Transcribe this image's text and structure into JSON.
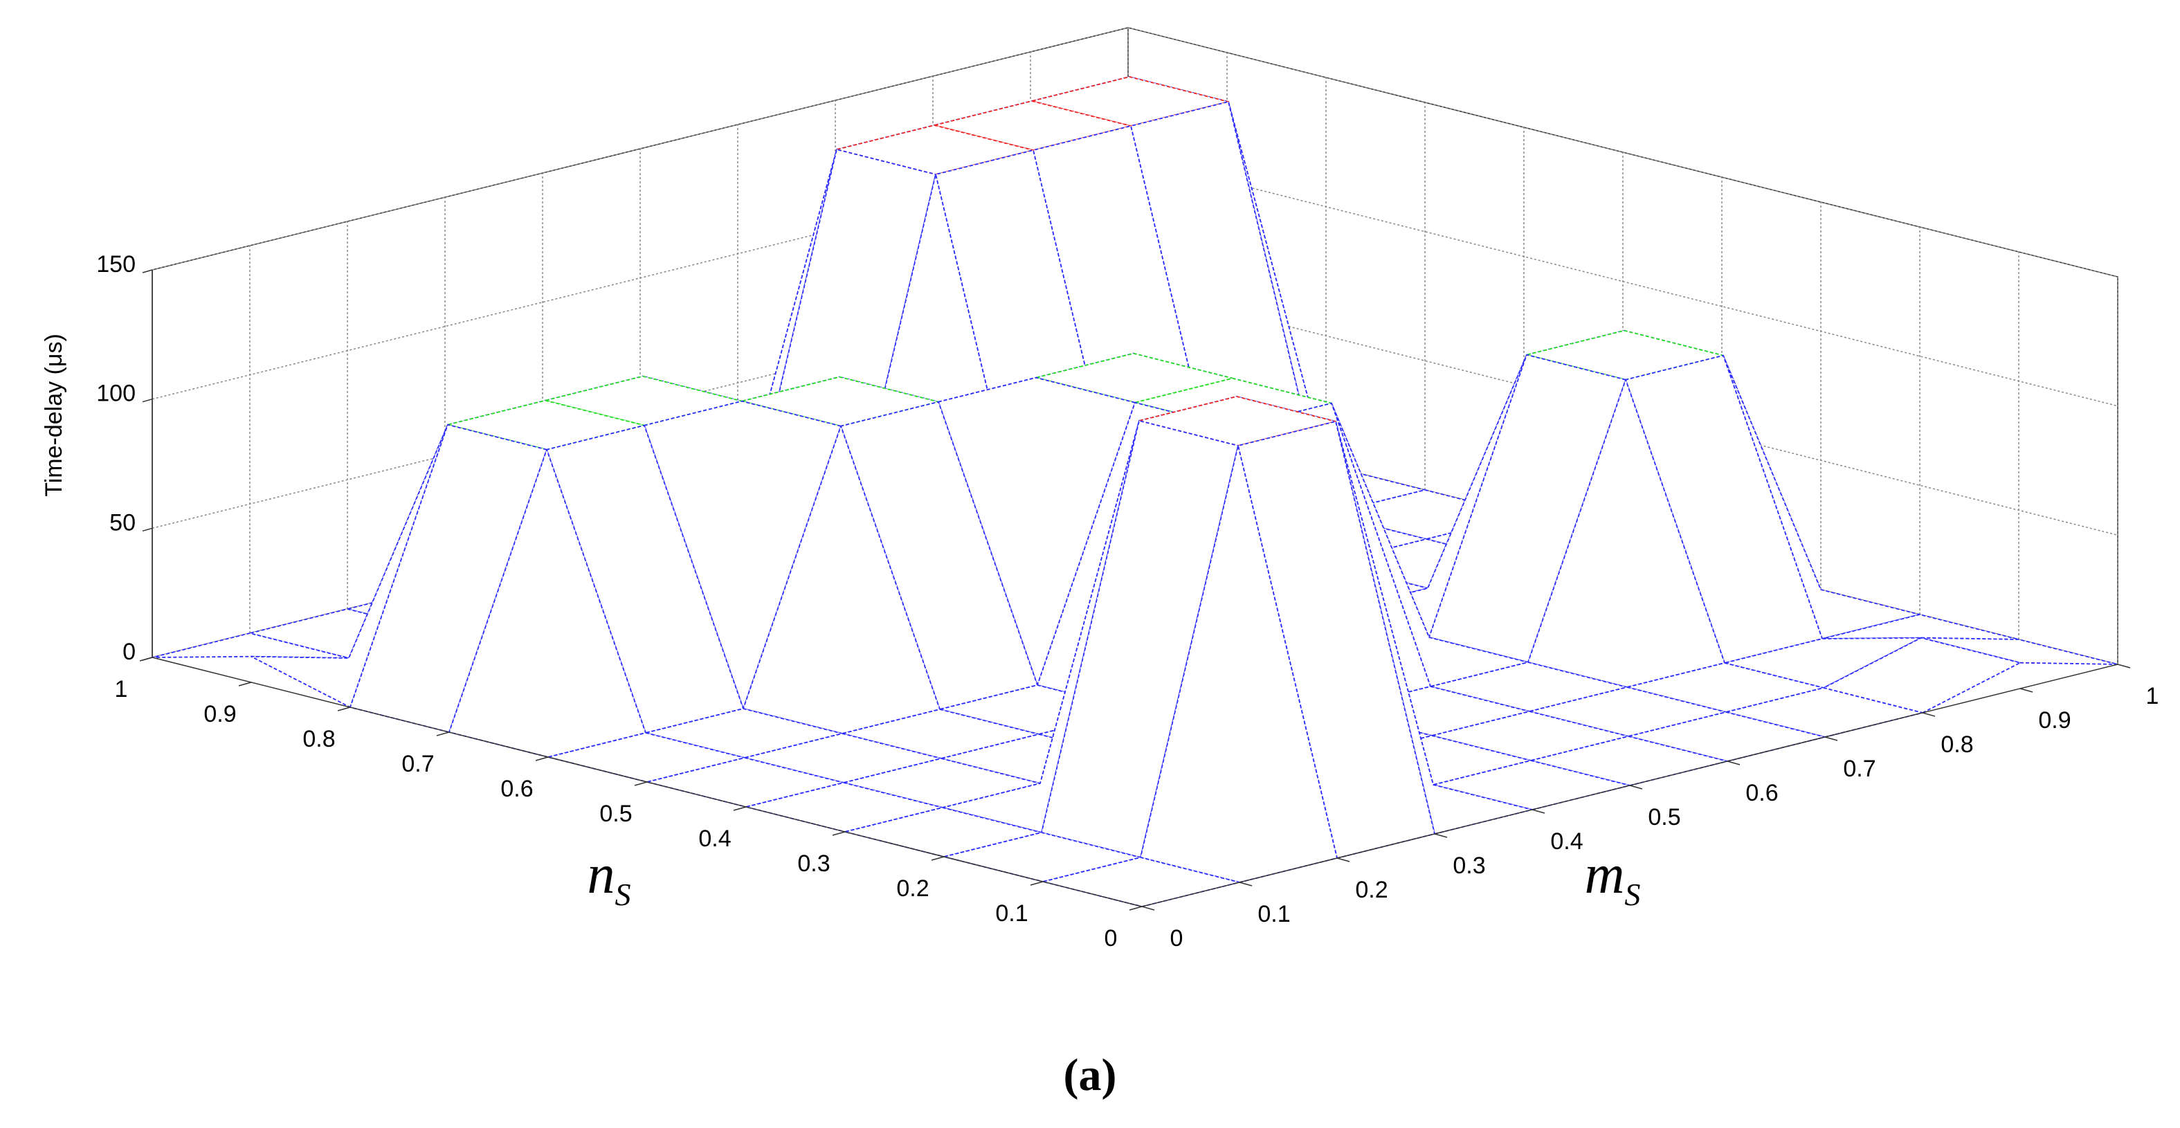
{
  "chart_data": {
    "type": "surface",
    "zlabel": "Time-delay  (μs)",
    "xlabel": "m",
    "xlabel_sub": "S",
    "ylabel": "n",
    "ylabel_sub": "S",
    "caption": "(a)",
    "x": [
      0,
      0.1,
      0.2,
      0.3,
      0.4,
      0.5,
      0.6,
      0.7,
      0.8,
      0.9,
      1
    ],
    "y": [
      0,
      0.1,
      0.2,
      0.3,
      0.4,
      0.5,
      0.6,
      0.7,
      0.8,
      0.9,
      1
    ],
    "z": [
      [
        0,
        0,
        0,
        0,
        0,
        0,
        0,
        0,
        0,
        10,
        0
      ],
      [
        0,
        0,
        150,
        150,
        0,
        0,
        0,
        0,
        0,
        10,
        0
      ],
      [
        0,
        0,
        150,
        150,
        0,
        0,
        0,
        0,
        0,
        0,
        0
      ],
      [
        0,
        0,
        0,
        0,
        0,
        0,
        0,
        0,
        100,
        100,
        0
      ],
      [
        0,
        0,
        0,
        0,
        0,
        100,
        100,
        0,
        100,
        100,
        0
      ],
      [
        0,
        0,
        0,
        0,
        0,
        100,
        100,
        0,
        0,
        0,
        0
      ],
      [
        0,
        0,
        0,
        100,
        100,
        100,
        100,
        0,
        0,
        0,
        0
      ],
      [
        0,
        100,
        100,
        100,
        100,
        0,
        0,
        0,
        0,
        0,
        0
      ],
      [
        0,
        100,
        100,
        100,
        0,
        0,
        150,
        150,
        150,
        150,
        0
      ],
      [
        10,
        0,
        0,
        0,
        0,
        0,
        150,
        150,
        150,
        150,
        0
      ],
      [
        0,
        0,
        0,
        0,
        0,
        0,
        0,
        0,
        0,
        0,
        0
      ]
    ],
    "xlim": [
      0,
      1
    ],
    "ylim": [
      0,
      1
    ],
    "zlim": [
      0,
      150
    ],
    "xticks": [
      0,
      0.1,
      0.2,
      0.3,
      0.4,
      0.5,
      0.6,
      0.7,
      0.8,
      0.9,
      1
    ],
    "yticks": [
      0,
      0.1,
      0.2,
      0.3,
      0.4,
      0.5,
      0.6,
      0.7,
      0.8,
      0.9,
      1
    ],
    "zticks": [
      0,
      50,
      100,
      150
    ],
    "colors": [
      "#2b2bff",
      "#22dd22",
      "#ee2222"
    ],
    "grid": true
  }
}
